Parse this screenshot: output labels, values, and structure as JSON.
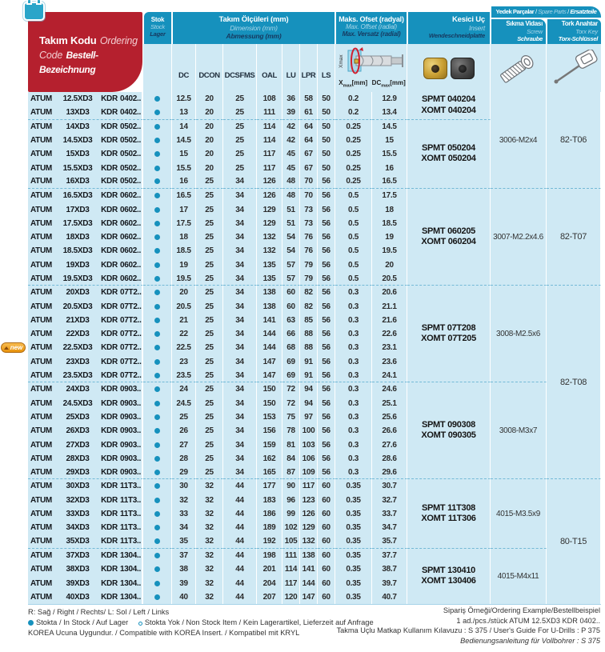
{
  "sep": " / ",
  "colors": {
    "teal": "#1691BD",
    "red": "#B5202E",
    "row_blue": "#CFE9F4",
    "navy": "#17395F",
    "dash": "#74B9D6"
  },
  "header": {
    "code_col": {
      "tr": "Takım Kodu",
      "en": "Ordering Code",
      "de": "Bestell-Bezeichnung"
    },
    "stock_col": {
      "tr": "Stok",
      "en": "Stock",
      "de": "Lager"
    },
    "dimensions": {
      "tr": "Takım Ölçüleri (mm)",
      "en": "Dimension (mm)",
      "de": "Abmessung (mm)"
    },
    "offset": {
      "tr": "Maks. Ofset (radyal)",
      "en": "Max. Offset (radial)",
      "de": "Max. Versatz (radial)"
    },
    "insert_col": {
      "tr": "Kesici Uç",
      "en": "Insert",
      "de": "Wendeschneidplatte"
    },
    "spare": {
      "tr": "Yedek Parçalar",
      "en": "Spare Parts",
      "de": "Ersatzteile"
    },
    "screw_col": {
      "tr": "Sıkma Vidası",
      "en": "Screw",
      "de": "Schraube"
    },
    "torx_col": {
      "tr": "Tork Anahtar",
      "en": "Torx Key",
      "de": "Torx-Schlüssel"
    },
    "dim_headers": [
      "DC",
      "DCON",
      "DCSFMS",
      "OAL",
      "LU",
      "LPR",
      "LS"
    ],
    "offset_x": {
      "base": "X",
      "sub": "max",
      "unit": "[mm]"
    },
    "offset_dc": {
      "base": "DC",
      "sub": "max",
      "unit": "[mm]"
    }
  },
  "diagram": {
    "xmax_label": "Xmax"
  },
  "badge": {
    "new_label": "new"
  },
  "table": {
    "brand": "ATUM",
    "hand": "KDR",
    "new_row_index": 18,
    "group_end_rows": [
      1,
      6,
      13,
      20,
      27,
      32
    ],
    "rows": [
      [
        "12.5XD3",
        "0402..",
        "12.5",
        "20",
        "25",
        "108",
        "36",
        "58",
        "50",
        "0.2",
        "12.9"
      ],
      [
        "13XD3",
        "0402..",
        "13",
        "20",
        "25",
        "111",
        "39",
        "61",
        "50",
        "0.2",
        "13.4"
      ],
      [
        "14XD3",
        "0502..",
        "14",
        "20",
        "25",
        "114",
        "42",
        "64",
        "50",
        "0.25",
        "14.5"
      ],
      [
        "14.5XD3",
        "0502..",
        "14.5",
        "20",
        "25",
        "114",
        "42",
        "64",
        "50",
        "0.25",
        "15"
      ],
      [
        "15XD3",
        "0502..",
        "15",
        "20",
        "25",
        "117",
        "45",
        "67",
        "50",
        "0.25",
        "15.5"
      ],
      [
        "15.5XD3",
        "0502..",
        "15.5",
        "20",
        "25",
        "117",
        "45",
        "67",
        "50",
        "0.25",
        "16"
      ],
      [
        "16XD3",
        "0502..",
        "16",
        "25",
        "34",
        "126",
        "48",
        "70",
        "56",
        "0.25",
        "16.5"
      ],
      [
        "16.5XD3",
        "0602..",
        "16.5",
        "25",
        "34",
        "126",
        "48",
        "70",
        "56",
        "0.5",
        "17.5"
      ],
      [
        "17XD3",
        "0602..",
        "17",
        "25",
        "34",
        "129",
        "51",
        "73",
        "56",
        "0.5",
        "18"
      ],
      [
        "17.5XD3",
        "0602..",
        "17.5",
        "25",
        "34",
        "129",
        "51",
        "73",
        "56",
        "0.5",
        "18.5"
      ],
      [
        "18XD3",
        "0602..",
        "18",
        "25",
        "34",
        "132",
        "54",
        "76",
        "56",
        "0.5",
        "19"
      ],
      [
        "18.5XD3",
        "0602..",
        "18.5",
        "25",
        "34",
        "132",
        "54",
        "76",
        "56",
        "0.5",
        "19.5"
      ],
      [
        "19XD3",
        "0602..",
        "19",
        "25",
        "34",
        "135",
        "57",
        "79",
        "56",
        "0.5",
        "20"
      ],
      [
        "19.5XD3",
        "0602..",
        "19.5",
        "25",
        "34",
        "135",
        "57",
        "79",
        "56",
        "0.5",
        "20.5"
      ],
      [
        "20XD3",
        "07T2..",
        "20",
        "25",
        "34",
        "138",
        "60",
        "82",
        "56",
        "0.3",
        "20.6"
      ],
      [
        "20.5XD3",
        "07T2..",
        "20.5",
        "25",
        "34",
        "138",
        "60",
        "82",
        "56",
        "0.3",
        "21.1"
      ],
      [
        "21XD3",
        "07T2..",
        "21",
        "25",
        "34",
        "141",
        "63",
        "85",
        "56",
        "0.3",
        "21.6"
      ],
      [
        "22XD3",
        "07T2..",
        "22",
        "25",
        "34",
        "144",
        "66",
        "88",
        "56",
        "0.3",
        "22.6"
      ],
      [
        "22.5XD3",
        "07T2..",
        "22.5",
        "25",
        "34",
        "144",
        "68",
        "88",
        "56",
        "0.3",
        "23.1"
      ],
      [
        "23XD3",
        "07T2..",
        "23",
        "25",
        "34",
        "147",
        "69",
        "91",
        "56",
        "0.3",
        "23.6"
      ],
      [
        "23.5XD3",
        "07T2..",
        "23.5",
        "25",
        "34",
        "147",
        "69",
        "91",
        "56",
        "0.3",
        "24.1"
      ],
      [
        "24XD3",
        "0903..",
        "24",
        "25",
        "34",
        "150",
        "72",
        "94",
        "56",
        "0.3",
        "24.6"
      ],
      [
        "24.5XD3",
        "0903..",
        "24.5",
        "25",
        "34",
        "150",
        "72",
        "94",
        "56",
        "0.3",
        "25.1"
      ],
      [
        "25XD3",
        "0903..",
        "25",
        "25",
        "34",
        "153",
        "75",
        "97",
        "56",
        "0.3",
        "25.6"
      ],
      [
        "26XD3",
        "0903..",
        "26",
        "25",
        "34",
        "156",
        "78",
        "100",
        "56",
        "0.3",
        "26.6"
      ],
      [
        "27XD3",
        "0903..",
        "27",
        "25",
        "34",
        "159",
        "81",
        "103",
        "56",
        "0.3",
        "27.6"
      ],
      [
        "28XD3",
        "0903..",
        "28",
        "25",
        "34",
        "162",
        "84",
        "106",
        "56",
        "0.3",
        "28.6"
      ],
      [
        "29XD3",
        "0903..",
        "29",
        "25",
        "34",
        "165",
        "87",
        "109",
        "56",
        "0.3",
        "29.6"
      ],
      [
        "30XD3",
        "11T3..",
        "30",
        "32",
        "44",
        "177",
        "90",
        "117",
        "60",
        "0.35",
        "30.7"
      ],
      [
        "32XD3",
        "11T3..",
        "32",
        "32",
        "44",
        "183",
        "96",
        "123",
        "60",
        "0.35",
        "32.7"
      ],
      [
        "33XD3",
        "11T3..",
        "33",
        "32",
        "44",
        "186",
        "99",
        "126",
        "60",
        "0.35",
        "33.7"
      ],
      [
        "34XD3",
        "11T3..",
        "34",
        "32",
        "44",
        "189",
        "102",
        "129",
        "60",
        "0.35",
        "34.7"
      ],
      [
        "35XD3",
        "11T3..",
        "35",
        "32",
        "44",
        "192",
        "105",
        "132",
        "60",
        "0.35",
        "35.7"
      ],
      [
        "37XD3",
        "1304..",
        "37",
        "32",
        "44",
        "198",
        "111",
        "138",
        "60",
        "0.35",
        "37.7"
      ],
      [
        "38XD3",
        "1304..",
        "38",
        "32",
        "44",
        "201",
        "114",
        "141",
        "60",
        "0.35",
        "38.7"
      ],
      [
        "39XD3",
        "1304..",
        "39",
        "32",
        "44",
        "204",
        "117",
        "144",
        "60",
        "0.35",
        "39.7"
      ],
      [
        "40XD3",
        "1304..",
        "40",
        "32",
        "44",
        "207",
        "120",
        "147",
        "60",
        "0.35",
        "40.7"
      ]
    ],
    "insert_groups": [
      {
        "start": 1,
        "span": 2,
        "lines": [
          "SPMT 040204",
          "XOMT 040204"
        ],
        "dash": true
      },
      {
        "start": 3,
        "span": 5,
        "lines": [
          "SPMT 050204",
          "XOMT 050204"
        ],
        "dash": true
      },
      {
        "start": 8,
        "span": 7,
        "lines": [
          "SPMT 060205",
          "XOMT 060204"
        ],
        "dash": true
      },
      {
        "start": 15,
        "span": 7,
        "lines": [
          "SPMT 07T208",
          "XOMT 07T205"
        ],
        "dash": true
      },
      {
        "start": 22,
        "span": 7,
        "lines": [
          "SPMT 090308",
          "XOMT 090305"
        ],
        "dash": true
      },
      {
        "start": 29,
        "span": 5,
        "lines": [
          "SPMT 11T308",
          "XOMT 11T306"
        ],
        "dash": true
      },
      {
        "start": 34,
        "span": 4,
        "lines": [
          "SPMT 130410",
          "XOMT 130406"
        ],
        "dash": false
      }
    ],
    "screw_groups": [
      {
        "start": 1,
        "span": 7,
        "label": "3006-M2x4",
        "dash": true
      },
      {
        "start": 8,
        "span": 7,
        "label": "3007-M2.2x4.6",
        "dash": true
      },
      {
        "start": 15,
        "span": 7,
        "label": "3008-M2.5x6",
        "dash": true
      },
      {
        "start": 22,
        "span": 7,
        "label": "3008-M3x7",
        "dash": true
      },
      {
        "start": 29,
        "span": 5,
        "label": "4015-M3.5x9",
        "dash": true
      },
      {
        "start": 34,
        "span": 4,
        "label": "4015-M4x11",
        "dash": false
      }
    ],
    "torx_groups": [
      {
        "start": 1,
        "span": 7,
        "label": "82-T06",
        "dash": true
      },
      {
        "start": 8,
        "span": 7,
        "label": "82-T07",
        "dash": true
      },
      {
        "start": 15,
        "span": 14,
        "label": "82-T08",
        "dash": true
      },
      {
        "start": 29,
        "span": 9,
        "label": "80-T15",
        "dash": false
      }
    ]
  },
  "footer": {
    "left1": "R: Sağ / Right / Rechts/   L: Sol / Left / Links",
    "left2a": "Stokta / In Stock / Auf Lager",
    "left2b": "Stokta Yok / Non Stock Item / Kein Lagerartikel, Lieferzeit auf Anfrage",
    "left3": "KOREA Ucuna Uygundur. / Compatible with KOREA Insert. / Kompatibel mit KRYL",
    "right1": "Sipariş Örneği/Ordering Example/Bestellbeispiel",
    "right2": "1 ad./pcs./stück  ATUM 12.5XD3 KDR 0402..",
    "right3": "Takma Uçlu Matkap Kullanım Kılavuzu : S 375 / User's Guide For U-Drills : P 375",
    "right4": "Bedienungsanleitung für Vollbohrer : S 375"
  }
}
